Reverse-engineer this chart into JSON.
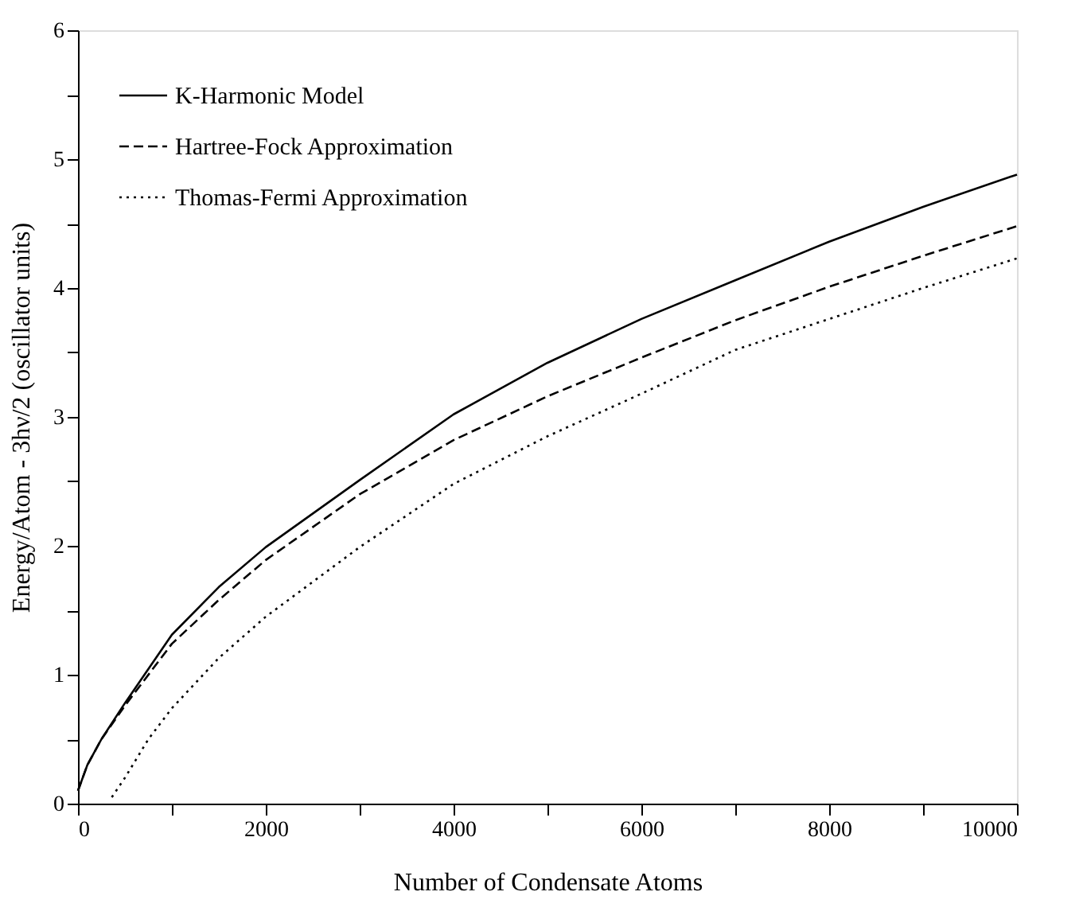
{
  "chart_data": {
    "type": "line",
    "xlabel": "Number of Condensate Atoms",
    "ylabel": "Energy/Atom - 3hν/2 (oscillator units)",
    "xlim": [
      0,
      10000
    ],
    "ylim": [
      0,
      6
    ],
    "xticks": [
      0,
      {
        "value": 1000,
        "label": null
      },
      2000,
      {
        "value": 3000,
        "label": null
      },
      4000,
      {
        "value": 5000,
        "label": null
      },
      6000,
      {
        "value": 7000,
        "label": null
      },
      8000,
      {
        "value": 9000,
        "label": null
      },
      10000
    ],
    "yticks": [
      0,
      {
        "value": 0.5,
        "label": null
      },
      1,
      {
        "value": 1.5,
        "label": null
      },
      2,
      {
        "value": 2.5,
        "label": null
      },
      3,
      {
        "value": 3.5,
        "label": null
      },
      4,
      {
        "value": 4.5,
        "label": null
      },
      5,
      {
        "value": 5.5,
        "label": null
      },
      6
    ],
    "grid": false,
    "legend": "top left",
    "marker": "none",
    "series": [
      {
        "name": "K-Harmonic Model",
        "color": "#000000",
        "line_style": "solid",
        "x": [
          0,
          100,
          250,
          500,
          1000,
          1500,
          2000,
          3000,
          4000,
          5000,
          6000,
          7000,
          8000,
          9000,
          10000
        ],
        "values": [
          0.1,
          0.3,
          0.5,
          0.78,
          1.31,
          1.68,
          1.99,
          2.51,
          3.02,
          3.42,
          3.76,
          4.06,
          4.36,
          4.63,
          4.88
        ]
      },
      {
        "name": "Hartree-Fock Approximation",
        "color": "#000000",
        "line_style": "dashed",
        "x": [
          0,
          100,
          250,
          500,
          1000,
          1500,
          2000,
          3000,
          4000,
          5000,
          6000,
          7000,
          8000,
          9000,
          10000
        ],
        "values": [
          0.1,
          0.3,
          0.5,
          0.76,
          1.24,
          1.58,
          1.89,
          2.4,
          2.82,
          3.16,
          3.46,
          3.75,
          4.01,
          4.25,
          4.48
        ]
      },
      {
        "name": "Thomas-Fermi Approximation",
        "color": "#000000",
        "line_style": "dotted",
        "x": [
          360,
          500,
          750,
          1000,
          1500,
          2000,
          3000,
          4000,
          5000,
          6000,
          7000,
          8000,
          9000,
          10000
        ],
        "values": [
          0.05,
          0.2,
          0.5,
          0.74,
          1.13,
          1.45,
          1.99,
          2.48,
          2.85,
          3.18,
          3.52,
          3.76,
          4.0,
          4.23
        ]
      }
    ]
  }
}
